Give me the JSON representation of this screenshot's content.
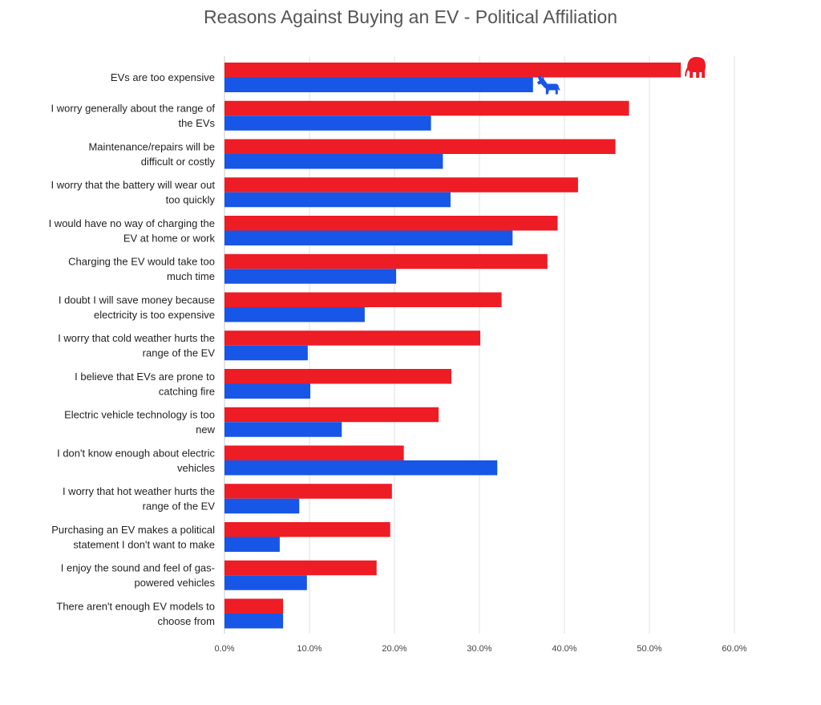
{
  "chart_data": {
    "type": "bar",
    "orientation": "horizontal",
    "title": "Reasons Against Buying an EV - Political Affiliation",
    "xlim": [
      0,
      60
    ],
    "x_ticks": [
      "0.0%",
      "10.0%",
      "20.0%",
      "30.0%",
      "40.0%",
      "50.0%",
      "60.0%"
    ],
    "grid": true,
    "categories": [
      [
        "EVs are too expensive"
      ],
      [
        "I worry generally about the range of",
        "the EVs"
      ],
      [
        "Maintenance/repairs will be",
        "difficult or costly"
      ],
      [
        "I worry that the battery will wear out",
        "too quickly"
      ],
      [
        "I would have no way of charging the",
        "EV at home or work"
      ],
      [
        "Charging the EV would take too",
        "much time"
      ],
      [
        "I doubt I will save money because",
        "electricity is too expensive"
      ],
      [
        "I worry that cold weather hurts the",
        "range of the EV"
      ],
      [
        "I believe that EVs are prone to",
        "catching fire"
      ],
      [
        "Electric vehicle technology is too",
        "new"
      ],
      [
        "I don't know enough about electric",
        "vehicles"
      ],
      [
        "I worry that hot weather hurts the",
        "range of the EV"
      ],
      [
        "Purchasing an EV makes a political",
        "statement I don't want to make"
      ],
      [
        "I enjoy the sound and feel of gas-",
        "powered vehicles"
      ],
      [
        "There aren't enough EV models to",
        "choose from"
      ]
    ],
    "series": [
      {
        "color": "#ee1c25",
        "icon": "elephant-icon",
        "values": [
          53.7,
          47.6,
          46.0,
          41.6,
          39.2,
          38.0,
          32.6,
          30.1,
          26.7,
          25.2,
          21.1,
          19.7,
          19.5,
          17.9,
          6.9
        ]
      },
      {
        "color": "#1756e6",
        "icon": "donkey-icon",
        "values": [
          36.3,
          24.3,
          25.7,
          26.6,
          33.9,
          20.2,
          16.5,
          9.8,
          10.1,
          13.8,
          32.1,
          8.8,
          6.5,
          9.7,
          6.9
        ]
      }
    ]
  }
}
